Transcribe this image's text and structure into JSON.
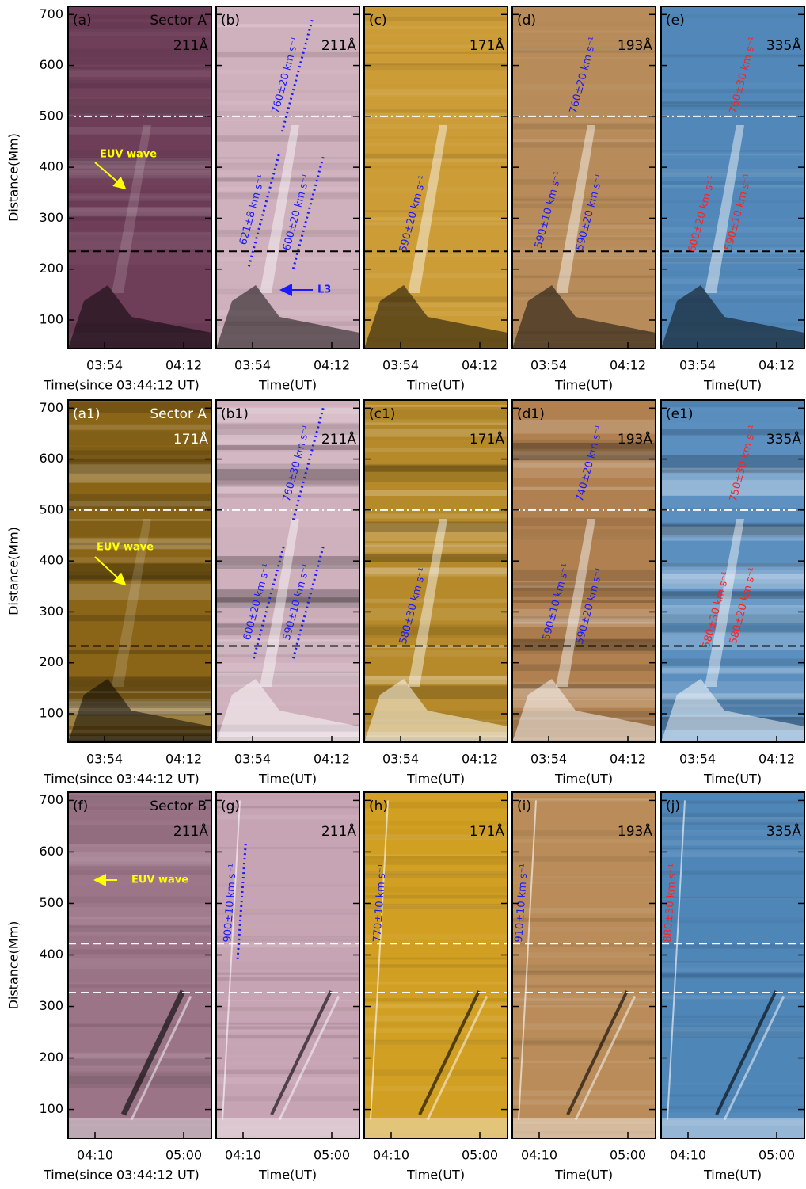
{
  "y_axis": {
    "label": "Distance(Mm)",
    "lim": [
      44,
      716
    ],
    "ticks": [
      100,
      200,
      300,
      400,
      500,
      600,
      700
    ]
  },
  "rows": [
    {
      "ref_lines": [
        {
          "value": 500,
          "color": "#ffffff",
          "style": "dash-dot"
        },
        {
          "value": 235,
          "color": "#000000",
          "style": "dashed"
        }
      ],
      "panels": [
        {
          "label": "(a)",
          "sector": "Sector A",
          "wavelength": "211Å",
          "color": "#6e3d58",
          "x_ticks": [
            "03:54",
            "04:12"
          ],
          "x_label": "Time(since 03:44:12 UT)",
          "annotations": [
            {
              "text": "EUV wave",
              "color": "#ffff00"
            }
          ]
        },
        {
          "label": "(b)",
          "wavelength": "211Å",
          "color": "#cfb0bd",
          "x_ticks": [
            "03:54",
            "04:12"
          ],
          "x_label": "Time(UT)",
          "annotations": [
            {
              "text": "760±20 km s⁻¹",
              "color": "#1a1aff"
            },
            {
              "text": "621±8 km s⁻¹",
              "color": "#1a1aff"
            },
            {
              "text": "600±20 km s⁻¹",
              "color": "#1a1aff"
            },
            {
              "text": "L3",
              "color": "#1a1aff"
            }
          ]
        },
        {
          "label": "(c)",
          "wavelength": "171Å",
          "color": "#cc9c36",
          "x_ticks": [
            "03:54",
            "04:12"
          ],
          "x_label": "Time(UT)",
          "annotations": [
            {
              "text": "590±20 km s⁻¹",
              "color": "#1a1aff"
            }
          ]
        },
        {
          "label": "(d)",
          "wavelength": "193Å",
          "color": "#b88c5a",
          "x_ticks": [
            "03:54",
            "04:12"
          ],
          "x_label": "Time(UT)",
          "annotations": [
            {
              "text": "760±20 km s⁻¹",
              "color": "#1a1aff"
            },
            {
              "text": "590±10 km s⁻¹",
              "color": "#1a1aff"
            },
            {
              "text": "590±20 km s⁻¹",
              "color": "#1a1aff"
            }
          ]
        },
        {
          "label": "(e)",
          "wavelength": "335Å",
          "color": "#5188b9",
          "x_ticks": [
            "03:54",
            "04:12"
          ],
          "x_label": "Time(UT)",
          "annotations": [
            {
              "text": "760±30 km s⁻¹",
              "color": "#ff2020"
            },
            {
              "text": "600±20 km s⁻¹",
              "color": "#ff2020"
            },
            {
              "text": "590±10 km s⁻¹",
              "color": "#ff2020"
            }
          ]
        }
      ]
    },
    {
      "ref_lines": [
        {
          "value": 500,
          "color": "#ffffff",
          "style": "dash-dot"
        },
        {
          "value": 233,
          "color": "#000000",
          "style": "dashed"
        }
      ],
      "panels": [
        {
          "label": "(a1)",
          "sector": "Sector A",
          "wavelength": "171Å",
          "color": "#8a6518",
          "label_color": "#ffffff",
          "x_ticks": [
            "03:54",
            "04:12"
          ],
          "x_label": "Time(since 03:44:12 UT)",
          "annotations": [
            {
              "text": "EUV wave",
              "color": "#ffff00"
            }
          ]
        },
        {
          "label": "(b1)",
          "wavelength": "211Å",
          "color": "#cfb0bd",
          "x_ticks": [
            "03:54",
            "04:12"
          ],
          "x_label": "Time(UT)",
          "annotations": [
            {
              "text": "760±30 km s⁻¹",
              "color": "#1a1aff"
            },
            {
              "text": "600±20 km s⁻¹",
              "color": "#1a1aff"
            },
            {
              "text": "590±10 km s⁻¹",
              "color": "#1a1aff"
            }
          ]
        },
        {
          "label": "(c1)",
          "wavelength": "171Å",
          "color": "#b68a2a",
          "x_ticks": [
            "03:54",
            "04:12"
          ],
          "x_label": "Time(UT)",
          "annotations": [
            {
              "text": "580±30 km s⁻¹",
              "color": "#1a1aff"
            }
          ]
        },
        {
          "label": "(d1)",
          "wavelength": "193Å",
          "color": "#b08050",
          "x_ticks": [
            "03:54",
            "04:12"
          ],
          "x_label": "Time(UT)",
          "annotations": [
            {
              "text": "740±20 km s⁻¹",
              "color": "#1a1aff"
            },
            {
              "text": "590±10 km s⁻¹",
              "color": "#1a1aff"
            },
            {
              "text": "590±20 km s⁻¹",
              "color": "#1a1aff"
            }
          ]
        },
        {
          "label": "(e1)",
          "wavelength": "335Å",
          "color": "#5a8fc0",
          "x_ticks": [
            "03:54",
            "04:12"
          ],
          "x_label": "Time(UT)",
          "annotations": [
            {
              "text": "750±30 km s⁻¹",
              "color": "#ff2020"
            },
            {
              "text": "580±30 km s⁻¹",
              "color": "#ff2020"
            },
            {
              "text": "580±20 km s⁻¹",
              "color": "#ff2020"
            }
          ]
        }
      ]
    },
    {
      "ref_lines": [
        {
          "value": 422,
          "color": "#ffffff",
          "style": "dashed"
        },
        {
          "value": 327,
          "color": "#ffffff",
          "style": "dashed"
        }
      ],
      "panels": [
        {
          "label": "(f)",
          "sector": "Sector B",
          "wavelength": "211Å",
          "color": "#9c7488",
          "x_ticks": [
            "04:10",
            "05:00"
          ],
          "x_label": "Time(since 03:44:12 UT)",
          "annotations": [
            {
              "text": "EUV wave",
              "color": "#ffff00"
            }
          ]
        },
        {
          "label": "(g)",
          "wavelength": "211Å",
          "color": "#c7a4b3",
          "x_ticks": [
            "04:10",
            "05:00"
          ],
          "x_label": "Time(UT)",
          "annotations": [
            {
              "text": "900±10 km s⁻¹",
              "color": "#1a1aff"
            }
          ]
        },
        {
          "label": "(h)",
          "wavelength": "171Å",
          "color": "#d19f22",
          "x_ticks": [
            "04:10",
            "05:00"
          ],
          "x_label": "Time(UT)",
          "annotations": [
            {
              "text": "770±10 km s⁻¹",
              "color": "#1a1aff"
            }
          ]
        },
        {
          "label": "(i)",
          "wavelength": "193Å",
          "color": "#b98c5a",
          "x_ticks": [
            "04:10",
            "05:00"
          ],
          "x_label": "Time(UT)",
          "annotations": [
            {
              "text": "910±10 km s⁻¹",
              "color": "#1a1aff"
            }
          ]
        },
        {
          "label": "(j)",
          "wavelength": "335Å",
          "color": "#4f86b8",
          "x_ticks": [
            "04:10",
            "05:00"
          ],
          "x_label": "Time(UT)",
          "annotations": [
            {
              "text": "880±30 km s⁻¹",
              "color": "#ff2020"
            }
          ]
        }
      ]
    }
  ]
}
